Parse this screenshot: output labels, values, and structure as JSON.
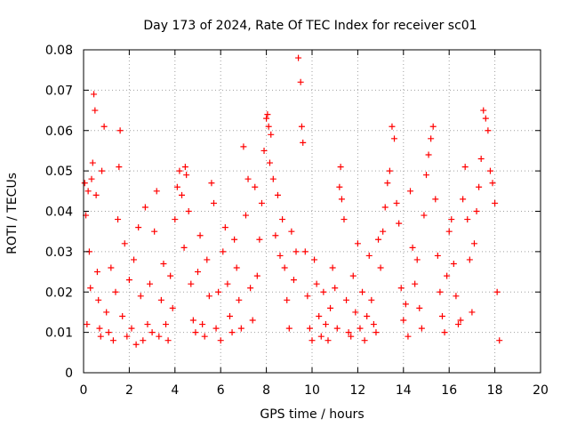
{
  "chart_data": {
    "type": "scatter",
    "title": "Day 173 of 2024, Rate Of TEC Index for receiver sc01",
    "xlabel": "GPS time / hours",
    "ylabel": "ROTI / TECUs",
    "xlim": [
      0,
      20
    ],
    "ylim": [
      0,
      0.08
    ],
    "xticks": [
      "0",
      "2",
      "4",
      "6",
      "8",
      "10",
      "12",
      "14",
      "16",
      "18",
      "20"
    ],
    "yticks": [
      "0",
      "0.01",
      "0.02",
      "0.03",
      "0.04",
      "0.05",
      "0.06",
      "0.07",
      "0.08"
    ],
    "grid": true,
    "marker": "+",
    "color": "#ff0000",
    "series": [
      {
        "name": "sc01",
        "x": [
          0.05,
          0.1,
          0.15,
          0.2,
          0.25,
          0.3,
          0.35,
          0.4,
          0.45,
          0.5,
          0.55,
          0.6,
          0.65,
          0.7,
          0.75,
          0.8,
          0.9,
          1.0,
          1.1,
          1.2,
          1.3,
          1.4,
          1.5,
          1.55,
          1.6,
          1.7,
          1.8,
          1.9,
          2.0,
          2.1,
          2.2,
          2.3,
          2.4,
          2.5,
          2.6,
          2.7,
          2.8,
          2.9,
          3.0,
          3.1,
          3.2,
          3.3,
          3.4,
          3.5,
          3.6,
          3.7,
          3.8,
          3.9,
          4.0,
          4.1,
          4.2,
          4.3,
          4.4,
          4.45,
          4.5,
          4.6,
          4.7,
          4.8,
          4.9,
          5.0,
          5.1,
          5.2,
          5.3,
          5.4,
          5.5,
          5.6,
          5.7,
          5.8,
          5.9,
          6.0,
          6.1,
          6.2,
          6.3,
          6.4,
          6.5,
          6.6,
          6.7,
          6.8,
          6.9,
          7.0,
          7.1,
          7.2,
          7.3,
          7.4,
          7.5,
          7.6,
          7.7,
          7.8,
          7.9,
          8.0,
          8.05,
          8.1,
          8.15,
          8.2,
          8.3,
          8.4,
          8.5,
          8.6,
          8.7,
          8.8,
          8.9,
          9.0,
          9.1,
          9.2,
          9.3,
          9.4,
          9.5,
          9.55,
          9.6,
          9.7,
          9.8,
          9.9,
          10.0,
          10.1,
          10.2,
          10.3,
          10.4,
          10.5,
          10.6,
          10.7,
          10.8,
          10.9,
          11.0,
          11.1,
          11.2,
          11.25,
          11.3,
          11.4,
          11.5,
          11.6,
          11.7,
          11.8,
          11.9,
          12.0,
          12.1,
          12.2,
          12.3,
          12.4,
          12.5,
          12.6,
          12.7,
          12.8,
          12.9,
          13.0,
          13.1,
          13.2,
          13.3,
          13.4,
          13.5,
          13.6,
          13.7,
          13.8,
          13.9,
          14.0,
          14.1,
          14.2,
          14.3,
          14.4,
          14.5,
          14.6,
          14.7,
          14.8,
          14.9,
          15.0,
          15.1,
          15.2,
          15.3,
          15.4,
          15.5,
          15.6,
          15.7,
          15.8,
          15.9,
          16.0,
          16.1,
          16.2,
          16.3,
          16.4,
          16.5,
          16.6,
          16.7,
          16.8,
          16.9,
          17.0,
          17.1,
          17.2,
          17.3,
          17.4,
          17.5,
          17.6,
          17.7,
          17.8,
          17.9,
          18.0,
          18.1,
          18.2
        ],
        "y": [
          0.047,
          0.039,
          0.012,
          0.045,
          0.03,
          0.021,
          0.048,
          0.052,
          0.069,
          0.065,
          0.044,
          0.025,
          0.018,
          0.011,
          0.009,
          0.05,
          0.061,
          0.015,
          0.01,
          0.026,
          0.008,
          0.02,
          0.038,
          0.051,
          0.06,
          0.014,
          0.032,
          0.009,
          0.023,
          0.011,
          0.028,
          0.007,
          0.036,
          0.019,
          0.008,
          0.041,
          0.012,
          0.022,
          0.01,
          0.035,
          0.045,
          0.009,
          0.018,
          0.027,
          0.012,
          0.008,
          0.024,
          0.016,
          0.038,
          0.046,
          0.05,
          0.044,
          0.031,
          0.051,
          0.049,
          0.04,
          0.022,
          0.013,
          0.01,
          0.025,
          0.034,
          0.012,
          0.009,
          0.028,
          0.019,
          0.047,
          0.042,
          0.011,
          0.02,
          0.008,
          0.03,
          0.036,
          0.022,
          0.014,
          0.01,
          0.033,
          0.026,
          0.018,
          0.011,
          0.056,
          0.039,
          0.048,
          0.021,
          0.013,
          0.046,
          0.024,
          0.033,
          0.042,
          0.055,
          0.063,
          0.064,
          0.061,
          0.052,
          0.059,
          0.048,
          0.034,
          0.044,
          0.029,
          0.038,
          0.026,
          0.018,
          0.011,
          0.035,
          0.023,
          0.03,
          0.078,
          0.072,
          0.061,
          0.057,
          0.03,
          0.019,
          0.011,
          0.008,
          0.028,
          0.022,
          0.014,
          0.009,
          0.02,
          0.012,
          0.008,
          0.016,
          0.026,
          0.021,
          0.011,
          0.046,
          0.051,
          0.043,
          0.038,
          0.018,
          0.01,
          0.009,
          0.024,
          0.015,
          0.032,
          0.011,
          0.02,
          0.008,
          0.014,
          0.029,
          0.018,
          0.012,
          0.01,
          0.033,
          0.026,
          0.035,
          0.041,
          0.047,
          0.05,
          0.061,
          0.058,
          0.042,
          0.037,
          0.021,
          0.013,
          0.017,
          0.009,
          0.045,
          0.031,
          0.022,
          0.028,
          0.016,
          0.011,
          0.039,
          0.049,
          0.054,
          0.058,
          0.061,
          0.043,
          0.029,
          0.02,
          0.014,
          0.01,
          0.024,
          0.035,
          0.038,
          0.027,
          0.019,
          0.012,
          0.013,
          0.043,
          0.051,
          0.038,
          0.028,
          0.015,
          0.032,
          0.04,
          0.046,
          0.053,
          0.065,
          0.063,
          0.06,
          0.05,
          0.047,
          0.042,
          0.02,
          0.008
        ]
      }
    ]
  }
}
